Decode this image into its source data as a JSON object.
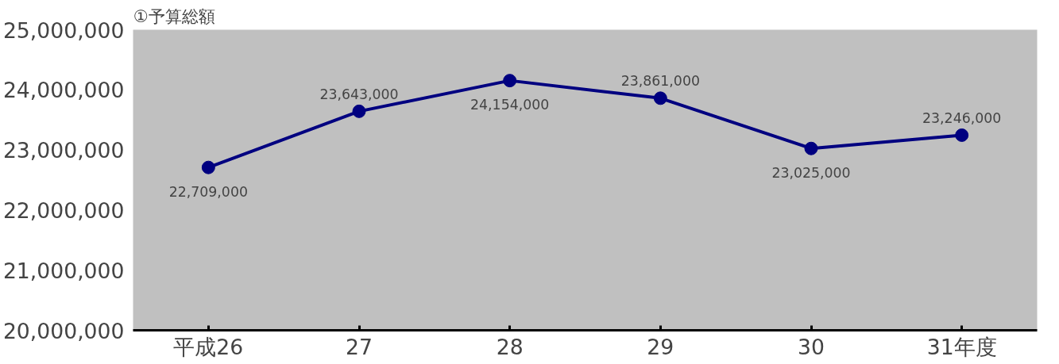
{
  "chart_data": {
    "type": "line",
    "title": "①予算総額",
    "categories": [
      "平成26",
      "27",
      "28",
      "29",
      "30",
      "31年度"
    ],
    "series": [
      {
        "color": "#000080",
        "values": [
          22709000,
          23643000,
          24154000,
          23861000,
          23025000,
          23246000
        ]
      }
    ],
    "ylim": [
      20000000,
      25000000
    ],
    "yticks": [
      {
        "value": 20000000,
        "label": "20,000,000"
      },
      {
        "value": 21000000,
        "label": "21,000,000"
      },
      {
        "value": 22000000,
        "label": "22,000,000"
      },
      {
        "value": 23000000,
        "label": "23,000,000"
      },
      {
        "value": 24000000,
        "label": "24,000,000"
      },
      {
        "value": 25000000,
        "label": "25,000,000"
      }
    ],
    "value_labels": [
      "22,709,000",
      "23,643,000",
      "24,154,000",
      "23,861,000",
      "23,025,000",
      "23,246,000"
    ],
    "marker": "circle",
    "grid": false
  }
}
